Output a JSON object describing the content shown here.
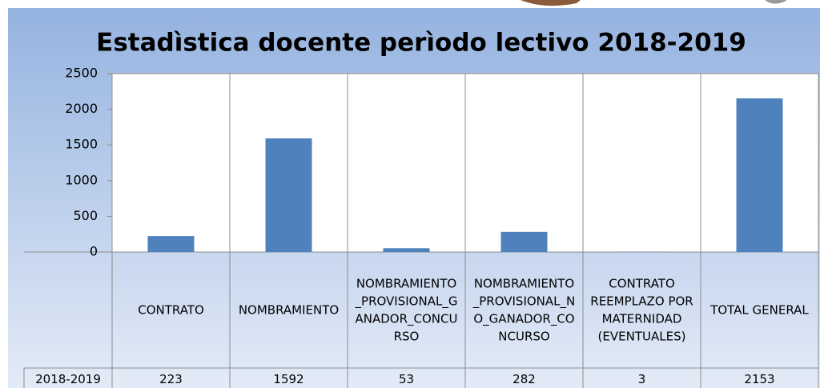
{
  "chart_data": {
    "type": "bar",
    "title": "Estadìstica docente perìodo lectivo 2018-2019",
    "categories": [
      "CONTRATO",
      "NOMBRAMIENTO",
      "NOMBRAMIENTO_PROVISIONAL_GANADOR_CONCURSO",
      "NOMBRAMIENTO_PROVISIONAL_NO_GANADOR_CONCURSO",
      "CONTRATO REEMPLAZO POR MATERNIDAD (EVENTUALES)",
      "TOTAL GENERAL"
    ],
    "series": [
      {
        "name": "2018-2019",
        "color": "#4f81bd",
        "values": [
          223,
          1592,
          53,
          282,
          3,
          2153
        ]
      }
    ],
    "ylim": [
      0,
      2500
    ],
    "yticks": [
      0,
      500,
      1000,
      1500,
      2000,
      2500
    ],
    "grid": false
  }
}
